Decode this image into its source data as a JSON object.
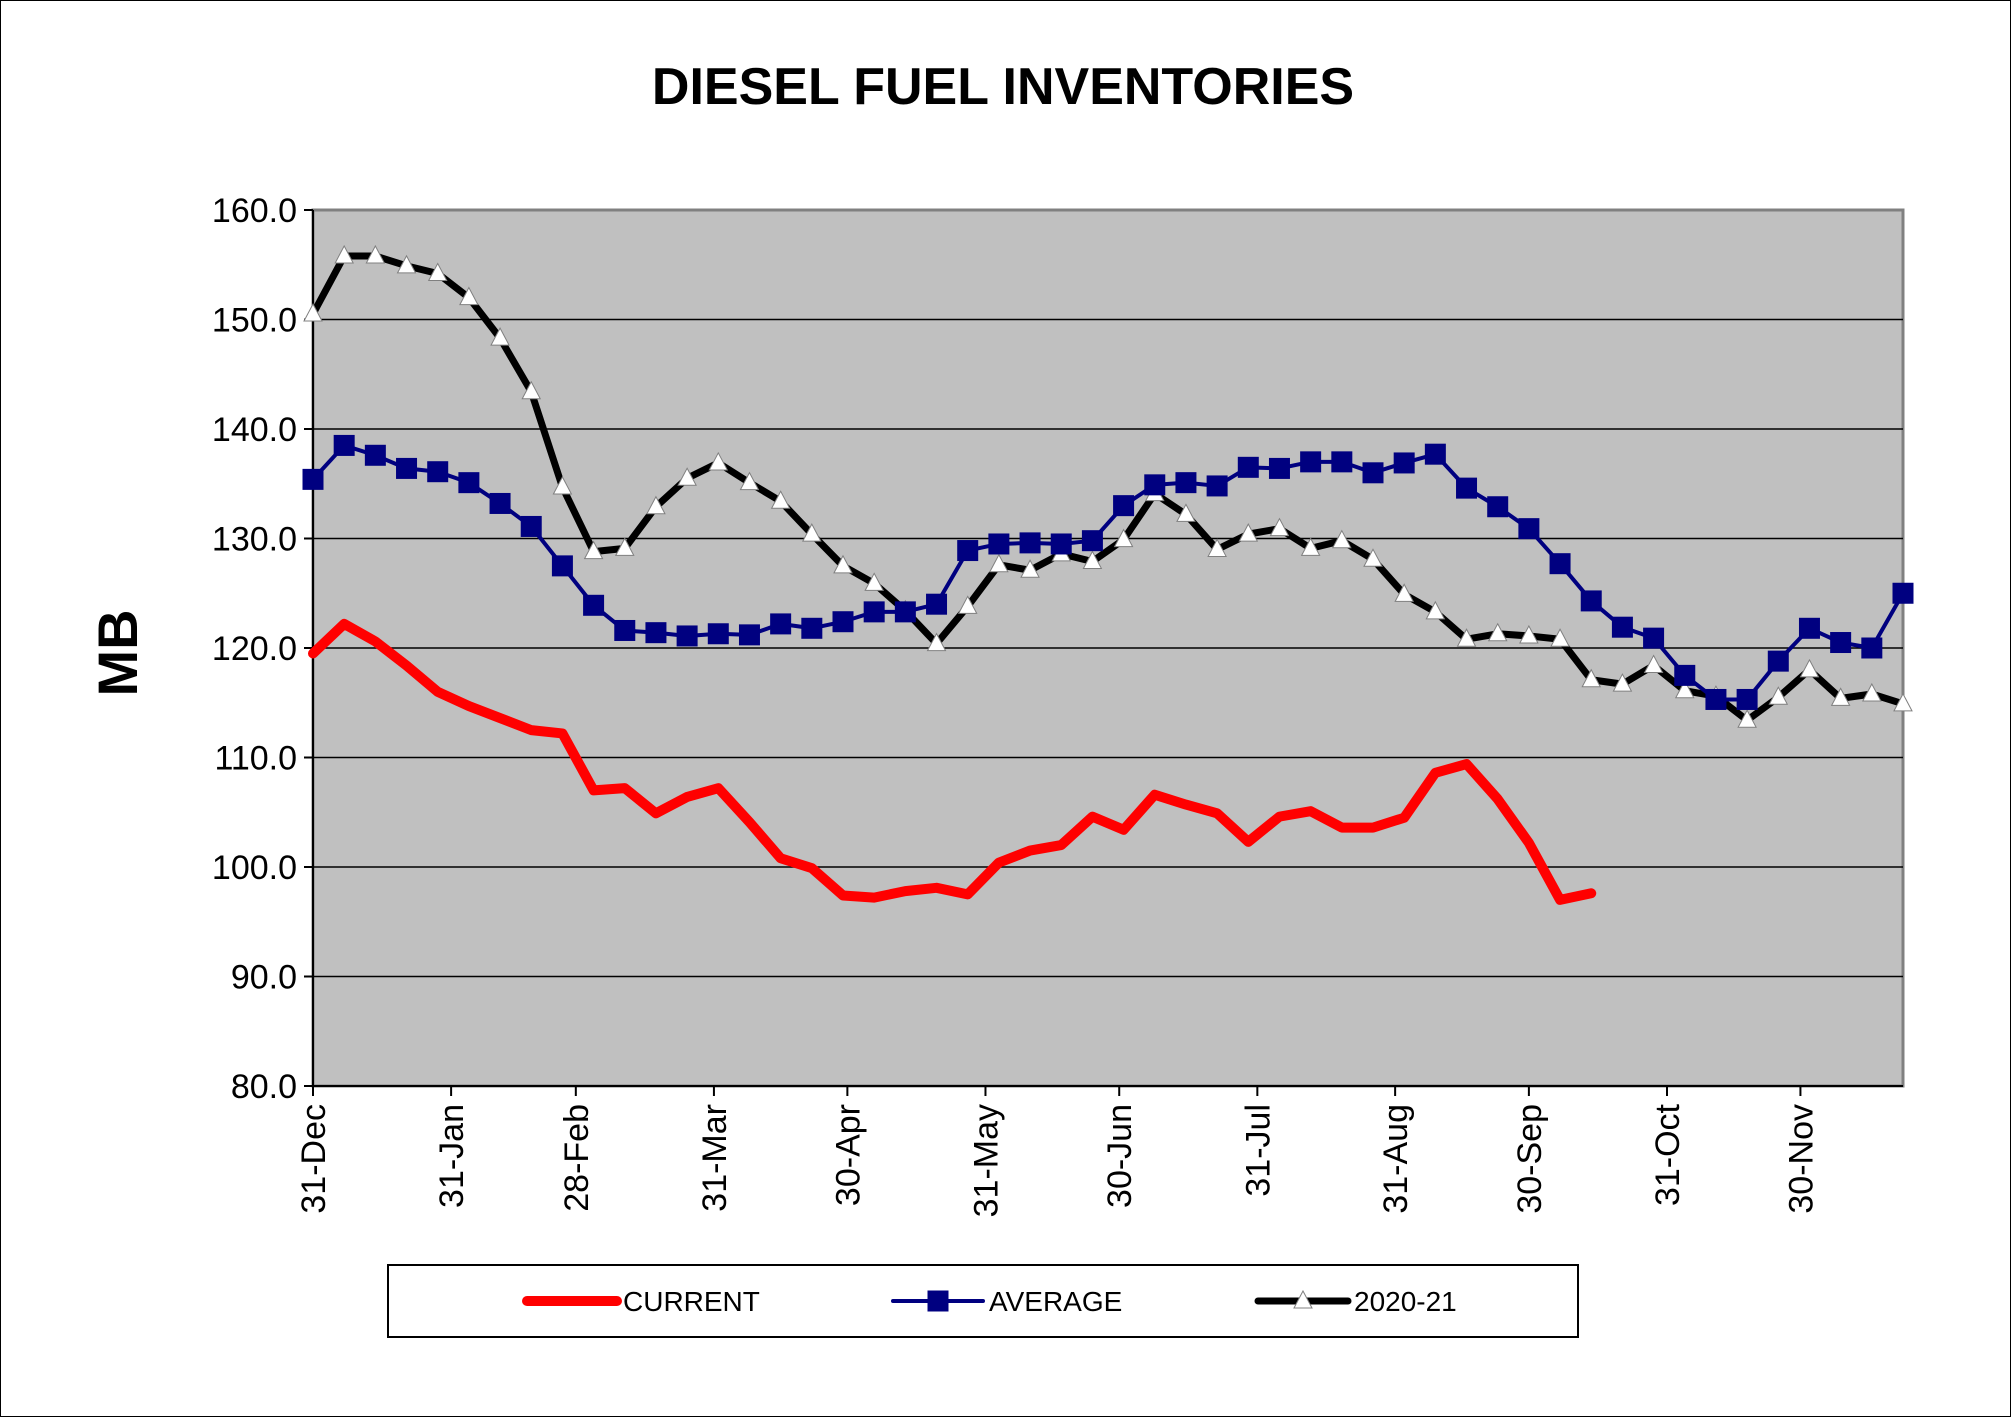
{
  "chart_data": {
    "type": "line",
    "title": "DIESEL FUEL INVENTORIES",
    "ylabel": "MB",
    "xlabel": "",
    "ylim": [
      80,
      160
    ],
    "y_ticks": [
      "80.0",
      "90.0",
      "100.0",
      "110.0",
      "120.0",
      "130.0",
      "140.0",
      "150.0",
      "160.0"
    ],
    "x_ticks": [
      "31-Dec",
      "31-Jan",
      "28-Feb",
      "31-Mar",
      "30-Apr",
      "31-May",
      "30-Jun",
      "31-Jul",
      "31-Aug",
      "30-Sep",
      "31-Oct",
      "30-Nov"
    ],
    "x_tick_weeks": [
      0,
      4.43,
      8.43,
      12.86,
      17.14,
      21.57,
      25.86,
      30.29,
      34.71,
      39,
      43.43,
      47.71
    ],
    "week_count": 51,
    "grid": true,
    "legend_position": "bottom",
    "colors": {
      "plot_background": "#c0c0c0",
      "current": "#ff0000",
      "average": "#000080",
      "prior_year": "#000000"
    },
    "series": [
      {
        "name": "CURRENT",
        "marker": "none",
        "values": [
          119.5,
          122.2,
          120.6,
          118.4,
          116.0,
          114.7,
          113.6,
          112.5,
          112.2,
          107.0,
          107.2,
          104.9,
          106.4,
          107.2,
          104.1,
          100.8,
          99.9,
          97.4,
          97.2,
          97.8,
          98.1,
          97.5,
          100.4,
          101.5,
          102.0,
          104.6,
          103.4,
          106.6,
          105.7,
          104.9,
          102.3,
          104.6,
          105.1,
          103.6,
          103.6,
          104.5,
          108.6,
          109.4,
          106.2,
          102.2,
          97.0,
          97.6
        ]
      },
      {
        "name": "AVERAGE",
        "marker": "square",
        "values": [
          135.4,
          138.5,
          137.6,
          136.4,
          136.1,
          135.1,
          133.2,
          131.1,
          127.5,
          123.9,
          121.6,
          121.4,
          121.1,
          121.3,
          121.2,
          122.2,
          121.8,
          122.4,
          123.3,
          123.3,
          124.0,
          128.9,
          129.5,
          129.6,
          129.5,
          129.8,
          133.0,
          134.9,
          135.1,
          134.8,
          136.5,
          136.4,
          137.0,
          137.0,
          136.0,
          136.9,
          137.7,
          134.6,
          132.9,
          130.9,
          127.7,
          124.3,
          121.9,
          120.9,
          117.5,
          115.3,
          115.3,
          118.8,
          121.8,
          120.5,
          120.0,
          125.0
        ]
      },
      {
        "name": "2020-21",
        "marker": "triangle",
        "values": [
          150.5,
          155.8,
          155.8,
          154.9,
          154.2,
          152.0,
          148.3,
          143.4,
          134.7,
          128.8,
          129.1,
          132.9,
          135.5,
          136.9,
          135.1,
          133.4,
          130.4,
          127.5,
          125.9,
          123.4,
          120.4,
          123.8,
          127.6,
          127.1,
          128.6,
          127.9,
          129.9,
          134.1,
          132.2,
          129.0,
          130.4,
          130.9,
          129.1,
          129.8,
          128.1,
          124.9,
          123.3,
          120.8,
          121.3,
          121.1,
          120.8,
          117.1,
          116.7,
          118.4,
          116.1,
          115.6,
          113.4,
          115.5,
          118.0,
          115.4,
          115.8,
          114.9
        ]
      }
    ]
  }
}
